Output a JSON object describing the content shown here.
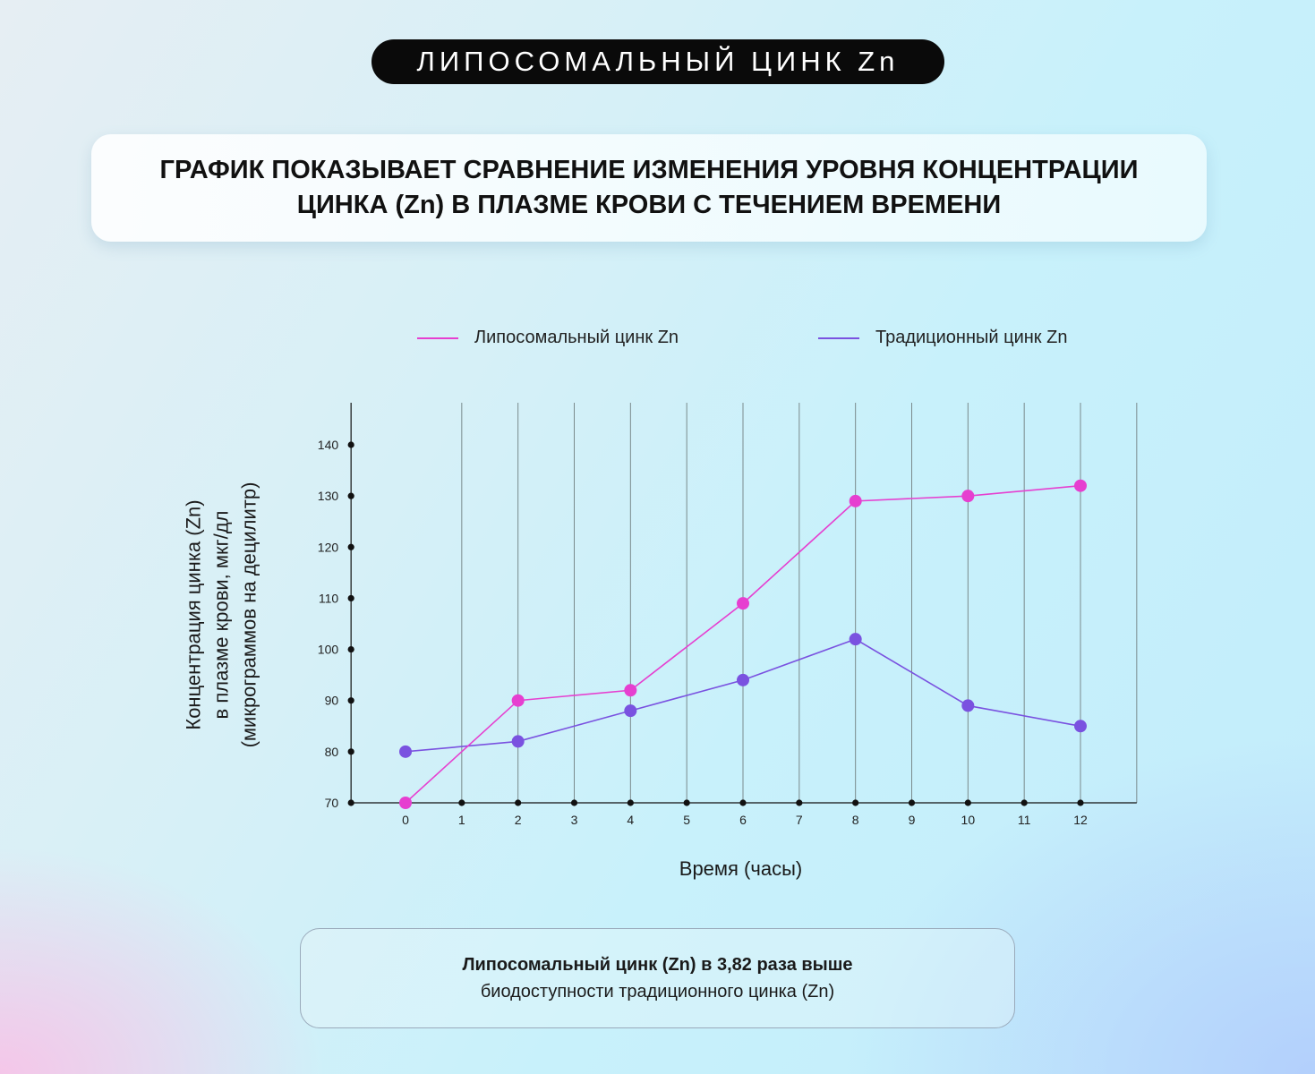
{
  "header": {
    "title": "ЛИПОСОМАЛЬНЫЙ ЦИНК Zn"
  },
  "subtitle": {
    "line1": "ГРАФИК ПОКАЗЫВАЕТ СРАВНЕНИЕ ИЗМЕНЕНИЯ УРОВНЯ КОНЦЕНТРАЦИИ",
    "line2": "ЦИНКА (Zn) В ПЛАЗМЕ КРОВИ С ТЕЧЕНИЕМ ВРЕМЕНИ"
  },
  "colors": {
    "liposomal": "#e63fd0",
    "traditional": "#7a52e0",
    "axis": "#111111",
    "grid": "#7a8a8c"
  },
  "chart_data": {
    "type": "line",
    "title": "",
    "xlabel": "Время (часы)",
    "ylabel_lines": [
      "Концентрация цинка (Zn)",
      "в плазме крови, мкг/дл",
      "(микрограммов на децилитр)"
    ],
    "x_ticks": [
      0,
      1,
      2,
      3,
      4,
      5,
      6,
      7,
      8,
      9,
      10,
      11,
      12
    ],
    "y_ticks": [
      70,
      80,
      90,
      100,
      110,
      120,
      130,
      140
    ],
    "xlim": [
      -1,
      13
    ],
    "ylim": [
      70,
      140
    ],
    "grid": "vertical",
    "legend": "top",
    "series": [
      {
        "name": "Липосомальный цинк Zn",
        "color": "#e63fd0",
        "x": [
          0,
          2,
          4,
          6,
          8,
          10,
          12
        ],
        "y": [
          70,
          90,
          92,
          109,
          129,
          130,
          132
        ]
      },
      {
        "name": "Традиционный цинк Zn",
        "color": "#7a52e0",
        "x": [
          0,
          2,
          4,
          6,
          8,
          10,
          12
        ],
        "y": [
          80,
          82,
          88,
          94,
          102,
          89,
          85
        ]
      }
    ]
  },
  "note": {
    "line1": "Липосомальный цинк (Zn) в 3,82 раза выше",
    "line2": "биодоступности традиционного цинка (Zn)"
  }
}
